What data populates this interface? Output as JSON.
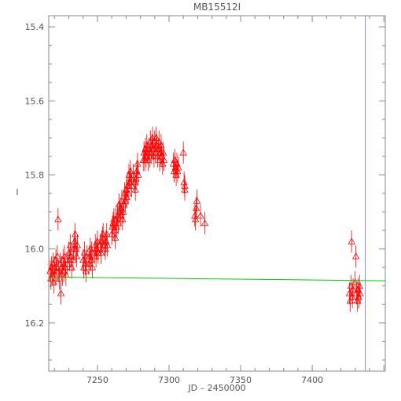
{
  "chart_data": {
    "type": "scatter",
    "title": "MB15512I",
    "xlabel": "JD – 2450000",
    "ylabel": "I",
    "xlim": [
      7216,
      7451
    ],
    "ylim": [
      16.33,
      15.37
    ],
    "y_inverted": true,
    "x_ticks": [
      7250,
      7300,
      7350,
      7400
    ],
    "y_ticks": [
      15.4,
      15.6,
      15.8,
      16.0,
      16.2
    ],
    "grid": false,
    "legend": "none",
    "series": [
      {
        "marker": "triangle-open",
        "color": "#ff0000",
        "error_bar_typical": 0.03,
        "points": [
          [
            7217,
            16.06
          ],
          [
            7217.5,
            16.08
          ],
          [
            7218,
            16.05
          ],
          [
            7218.5,
            16.07
          ],
          [
            7219,
            16.04
          ],
          [
            7219.5,
            16.09
          ],
          [
            7220,
            16.05
          ],
          [
            7220.5,
            16.07
          ],
          [
            7221,
            16.03
          ],
          [
            7221.5,
            16.06
          ],
          [
            7222,
            16.02
          ],
          [
            7222.5,
            15.92
          ],
          [
            7223,
            16.06
          ],
          [
            7223.5,
            16.08
          ],
          [
            7224,
            16.04
          ],
          [
            7224.5,
            16.12
          ],
          [
            7225,
            16.05
          ],
          [
            7225.5,
            16.07
          ],
          [
            7226,
            16.03
          ],
          [
            7226.5,
            16.06
          ],
          [
            7227,
            16.02
          ],
          [
            7227.5,
            16.05
          ],
          [
            7228,
            16.07
          ],
          [
            7229,
            16.04
          ],
          [
            7230,
            16.01
          ],
          [
            7230.5,
            16.03
          ],
          [
            7231,
            15.99
          ],
          [
            7231.5,
            16.02
          ],
          [
            7232,
            16.05
          ],
          [
            7233,
            16.03
          ],
          [
            7233.5,
            16.0
          ],
          [
            7234,
            15.98
          ],
          [
            7234.5,
            15.96
          ],
          [
            7235,
            16.0
          ],
          [
            7235.5,
            16.02
          ],
          [
            7236,
            15.99
          ],
          [
            7240,
            16.03
          ],
          [
            7240.5,
            16.05
          ],
          [
            7241,
            16.01
          ],
          [
            7241.5,
            16.04
          ],
          [
            7242,
            16.06
          ],
          [
            7242.5,
            16.02
          ],
          [
            7244,
            16.04
          ],
          [
            7244.5,
            16.02
          ],
          [
            7245,
            16.0
          ],
          [
            7245.5,
            16.03
          ],
          [
            7246,
            16.01
          ],
          [
            7246.5,
            16.05
          ],
          [
            7248,
            16.01
          ],
          [
            7248.5,
            15.99
          ],
          [
            7249,
            16.02
          ],
          [
            7249.5,
            16.0
          ],
          [
            7250,
            15.98
          ],
          [
            7250.5,
            16.01
          ],
          [
            7252,
            15.99
          ],
          [
            7252.5,
            16.01
          ],
          [
            7253,
            15.98
          ],
          [
            7253.5,
            15.97
          ],
          [
            7254,
            15.96
          ],
          [
            7255,
            15.99
          ],
          [
            7255.5,
            16.0
          ],
          [
            7256,
            15.98
          ],
          [
            7256.5,
            15.96
          ],
          [
            7257,
            15.99
          ],
          [
            7260,
            15.96
          ],
          [
            7260.5,
            15.94
          ],
          [
            7261,
            15.93
          ],
          [
            7261.5,
            15.92
          ],
          [
            7262,
            15.95
          ],
          [
            7262.5,
            15.97
          ],
          [
            7263,
            15.92
          ],
          [
            7263.5,
            15.94
          ],
          [
            7264,
            15.91
          ],
          [
            7264.5,
            15.93
          ],
          [
            7265,
            15.88
          ],
          [
            7265.5,
            15.9
          ],
          [
            7266,
            15.89
          ],
          [
            7266.5,
            15.91
          ],
          [
            7267,
            15.87
          ],
          [
            7267.5,
            15.92
          ],
          [
            7268,
            15.9
          ],
          [
            7268.5,
            15.88
          ],
          [
            7269,
            15.85
          ],
          [
            7269.5,
            15.87
          ],
          [
            7270,
            15.84
          ],
          [
            7270.5,
            15.86
          ],
          [
            7271,
            15.83
          ],
          [
            7271.5,
            15.85
          ],
          [
            7272,
            15.8
          ],
          [
            7272.5,
            15.82
          ],
          [
            7273,
            15.79
          ],
          [
            7273.5,
            15.81
          ],
          [
            7274,
            15.83
          ],
          [
            7275,
            15.8
          ],
          [
            7276,
            15.82
          ],
          [
            7276.5,
            15.84
          ],
          [
            7277,
            15.81
          ],
          [
            7277.5,
            15.79
          ],
          [
            7278,
            15.77
          ],
          [
            7278.5,
            15.8
          ],
          [
            7282,
            15.76
          ],
          [
            7282.5,
            15.74
          ],
          [
            7283,
            15.76
          ],
          [
            7283.5,
            15.73
          ],
          [
            7284,
            15.75
          ],
          [
            7284.5,
            15.72
          ],
          [
            7285,
            15.74
          ],
          [
            7285.5,
            15.76
          ],
          [
            7286,
            15.73
          ],
          [
            7286.5,
            15.75
          ],
          [
            7287,
            15.71
          ],
          [
            7287.5,
            15.74
          ],
          [
            7288,
            15.72
          ],
          [
            7288.5,
            15.7
          ],
          [
            7289,
            15.73
          ],
          [
            7289.5,
            15.75
          ],
          [
            7290,
            15.71
          ],
          [
            7290.5,
            15.74
          ],
          [
            7291,
            15.7
          ],
          [
            7291.5,
            15.72
          ],
          [
            7292,
            15.75
          ],
          [
            7292.5,
            15.73
          ],
          [
            7293,
            15.71
          ],
          [
            7293.5,
            15.76
          ],
          [
            7294,
            15.74
          ],
          [
            7294.5,
            15.72
          ],
          [
            7295,
            15.75
          ],
          [
            7295.5,
            15.77
          ],
          [
            7296,
            15.74
          ],
          [
            7296.5,
            15.76
          ],
          [
            7303,
            15.77
          ],
          [
            7303.5,
            15.79
          ],
          [
            7304,
            15.76
          ],
          [
            7304.5,
            15.78
          ],
          [
            7305,
            15.8
          ],
          [
            7305.5,
            15.77
          ],
          [
            7306,
            15.79
          ],
          [
            7306.5,
            15.78
          ],
          [
            7310,
            15.74
          ],
          [
            7310.5,
            15.82
          ],
          [
            7311,
            15.84
          ],
          [
            7311,
            15.83
          ],
          [
            7318,
            15.91
          ],
          [
            7318.5,
            15.92
          ],
          [
            7319,
            15.89
          ],
          [
            7319.5,
            15.87
          ],
          [
            7322,
            15.91
          ],
          [
            7325,
            15.93
          ],
          [
            7426,
            16.12
          ],
          [
            7426.5,
            16.14
          ],
          [
            7427,
            16.1
          ],
          [
            7427.5,
            15.98
          ],
          [
            7428,
            16.13
          ],
          [
            7428.5,
            16.11
          ],
          [
            7430,
            16.09
          ],
          [
            7430.5,
            16.02
          ],
          [
            7431,
            16.12
          ],
          [
            7431.5,
            16.14
          ],
          [
            7432,
            16.11
          ],
          [
            7432.5,
            16.13
          ],
          [
            7433,
            16.1
          ],
          [
            7433.5,
            16.12
          ]
        ]
      }
    ],
    "model_line": {
      "color": "#00cc00",
      "x": [
        7216,
        7451
      ],
      "y": [
        16.076,
        16.086
      ]
    },
    "vertical_line": {
      "color": "#8888ff",
      "x": 7437
    }
  }
}
